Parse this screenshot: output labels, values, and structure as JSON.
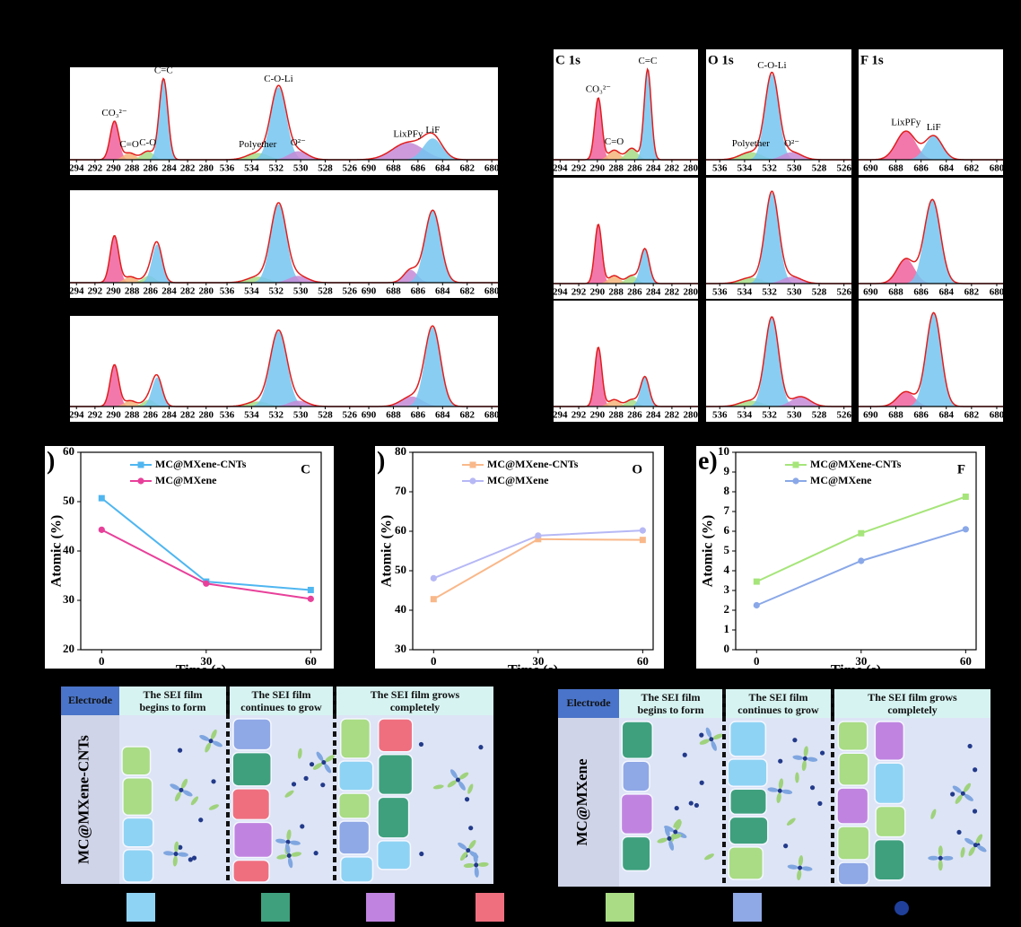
{
  "chart_data": [
    {
      "type": "xps",
      "xlim": [
        294.7,
        279.2
      ],
      "xticks": [
        294,
        292,
        290,
        288,
        286,
        284,
        282,
        280
      ],
      "series": [
        {
          "name": "CO₃²⁻",
          "color": "#f0609c",
          "center": 289.9,
          "height": 0.45,
          "width": 1.1
        },
        {
          "name": "C=O",
          "color": "#f5b47a",
          "center": 288.3,
          "height": 0.08,
          "width": 1.5
        },
        {
          "name": "C-O",
          "color": "#a6dc86",
          "center": 286.3,
          "height": 0.1,
          "width": 1.5
        },
        {
          "name": "C=C",
          "color": "#74c4f0",
          "center": 284.6,
          "height": 0.95,
          "width": 1.1
        }
      ]
    },
    {
      "type": "xps",
      "xlim": [
        537.1,
        525.4
      ],
      "xticks": [
        536,
        534,
        532,
        530,
        528,
        526
      ],
      "series": [
        {
          "name": "Polyether",
          "color": "#a6dc86",
          "center": 533.5,
          "height": 0.08,
          "width": 2
        },
        {
          "name": "C-O-Li",
          "color": "#74c4f0",
          "center": 531.8,
          "height": 0.85,
          "width": 1.5
        },
        {
          "name": "O²⁻",
          "color": "#c48ad6",
          "center": 530.2,
          "height": 0.1,
          "width": 1.8
        }
      ]
    },
    {
      "type": "xps",
      "xlim": [
        690.95,
        679.5
      ],
      "xticks": [
        690,
        688,
        686,
        684,
        682,
        680
      ],
      "series": [
        {
          "name": "LixPFy",
          "color": "#c48ad6",
          "center": 686.8,
          "height": 0.2,
          "width": 3
        },
        {
          "name": "LiF",
          "color": "#74c4f0",
          "center": 684.8,
          "height": 0.25,
          "width": 1.8
        }
      ]
    },
    {
      "type": "xps",
      "xlim": [
        294.7,
        279.2
      ],
      "xticks": [
        294,
        292,
        290,
        288,
        286,
        284,
        282,
        280
      ],
      "series": [
        {
          "color": "#f0609c",
          "center": 289.9,
          "height": 0.55,
          "width": 1.1
        },
        {
          "color": "#f5b47a",
          "center": 288.2,
          "height": 0.07,
          "width": 1.5
        },
        {
          "color": "#a6dc86",
          "center": 286.2,
          "height": 0.08,
          "width": 1.5
        },
        {
          "color": "#74c4f0",
          "center": 285.3,
          "height": 0.45,
          "width": 1.3
        }
      ]
    },
    {
      "type": "xps",
      "xlim": [
        537.1,
        525.4
      ],
      "xticks": [
        536,
        534,
        532,
        530,
        528,
        526
      ],
      "series": [
        {
          "color": "#a6dc86",
          "center": 533.5,
          "height": 0.07,
          "width": 2
        },
        {
          "color": "#74c4f0",
          "center": 531.8,
          "height": 0.92,
          "width": 1.5
        },
        {
          "color": "#c48ad6",
          "center": 530.2,
          "height": 0.08,
          "width": 1.8
        }
      ]
    },
    {
      "type": "xps",
      "xlim": [
        690.95,
        679.5
      ],
      "xticks": [
        690,
        688,
        686,
        684,
        682,
        680
      ],
      "series": [
        {
          "color": "#c48ad6",
          "center": 686.6,
          "height": 0.15,
          "width": 1.3
        },
        {
          "color": "#74c4f0",
          "center": 684.8,
          "height": 0.85,
          "width": 1.5
        }
      ]
    },
    {
      "type": "xps",
      "xlim": [
        294.7,
        279.2
      ],
      "xticks": [
        294,
        292,
        290,
        288,
        286,
        284,
        282,
        280
      ],
      "series": [
        {
          "color": "#f0609c",
          "center": 289.9,
          "height": 0.5,
          "width": 1.1
        },
        {
          "color": "#f5b47a",
          "center": 288.2,
          "height": 0.07,
          "width": 1.5
        },
        {
          "color": "#a6dc86",
          "center": 286.2,
          "height": 0.08,
          "width": 1.5
        },
        {
          "color": "#74c4f0",
          "center": 285.3,
          "height": 0.35,
          "width": 1.3
        }
      ]
    },
    {
      "type": "xps",
      "xlim": [
        537.1,
        525.4
      ],
      "xticks": [
        536,
        534,
        532,
        530,
        528,
        526
      ],
      "series": [
        {
          "color": "#a6dc86",
          "center": 533.5,
          "height": 0.06,
          "width": 2
        },
        {
          "color": "#74c4f0",
          "center": 531.8,
          "height": 0.9,
          "width": 1.6
        },
        {
          "color": "#c48ad6",
          "center": 530.2,
          "height": 0.07,
          "width": 1.8
        }
      ]
    },
    {
      "type": "xps",
      "xlim": [
        690.95,
        679.5
      ],
      "xticks": [
        690,
        688,
        686,
        684,
        682,
        680
      ],
      "series": [
        {
          "color": "#c48ad6",
          "center": 686.5,
          "height": 0.12,
          "width": 2
        },
        {
          "color": "#74c4f0",
          "center": 684.8,
          "height": 0.95,
          "width": 1.5
        }
      ]
    },
    {
      "type": "xps",
      "title": "C 1s",
      "xlim": [
        294.7,
        279.2
      ],
      "xticks": [
        294,
        292,
        290,
        288,
        286,
        284,
        282,
        280
      ],
      "series": [
        {
          "name": "CO₃²⁻",
          "color": "#f0609c",
          "center": 289.9,
          "height": 0.65,
          "width": 0.9
        },
        {
          "name": "C=O",
          "color": "#f5b47a",
          "center": 288.2,
          "height": 0.1,
          "width": 1.4
        },
        {
          "color": "#a6dc86",
          "center": 286.3,
          "height": 0.12,
          "width": 1.4
        },
        {
          "name": "C=C",
          "color": "#74c4f0",
          "center": 284.6,
          "height": 0.95,
          "width": 0.9
        }
      ]
    },
    {
      "type": "xps",
      "title": "O 1s",
      "xlim": [
        537.1,
        525.4
      ],
      "xticks": [
        536,
        534,
        532,
        530,
        528,
        526
      ],
      "series": [
        {
          "name": "Polyether",
          "color": "#a6dc86",
          "center": 533.5,
          "height": 0.08,
          "width": 2
        },
        {
          "name": "C-O-Li",
          "color": "#74c4f0",
          "center": 531.8,
          "height": 0.9,
          "width": 1.3
        },
        {
          "name": "O²⁻",
          "color": "#c48ad6",
          "center": 530.2,
          "height": 0.08,
          "width": 1.8
        }
      ]
    },
    {
      "type": "xps",
      "title": "F 1s",
      "xlim": [
        690.95,
        679.5
      ],
      "xticks": [
        690,
        688,
        686,
        684,
        682,
        680
      ],
      "series": [
        {
          "name": "LixPFy",
          "color": "#f0609c",
          "center": 687.2,
          "height": 0.3,
          "width": 1.8
        },
        {
          "name": "LiF",
          "color": "#74c4f0",
          "center": 685,
          "height": 0.25,
          "width": 1.6
        }
      ]
    },
    {
      "type": "xps",
      "xlim": [
        294.7,
        279.2
      ],
      "xticks": [
        294,
        292,
        290,
        288,
        286,
        284,
        282,
        280
      ],
      "series": [
        {
          "color": "#f0609c",
          "center": 289.9,
          "height": 0.6,
          "width": 0.9
        },
        {
          "color": "#f5b47a",
          "center": 288.2,
          "height": 0.08,
          "width": 1.4
        },
        {
          "color": "#a6dc86",
          "center": 286.3,
          "height": 0.08,
          "width": 1.4
        },
        {
          "color": "#74c4f0",
          "center": 284.9,
          "height": 0.35,
          "width": 1.1
        }
      ]
    },
    {
      "type": "xps",
      "xlim": [
        537.1,
        525.4
      ],
      "xticks": [
        536,
        534,
        532,
        530,
        528,
        526
      ],
      "series": [
        {
          "color": "#a6dc86",
          "center": 533.5,
          "height": 0.06,
          "width": 2
        },
        {
          "color": "#74c4f0",
          "center": 531.8,
          "height": 0.92,
          "width": 1.3
        },
        {
          "color": "#c48ad6",
          "center": 530.2,
          "height": 0.07,
          "width": 1.8
        }
      ]
    },
    {
      "type": "xps",
      "xlim": [
        690.95,
        679.5
      ],
      "xticks": [
        690,
        688,
        686,
        684,
        682,
        680
      ],
      "series": [
        {
          "color": "#f0609c",
          "center": 687.2,
          "height": 0.25,
          "width": 1.6
        },
        {
          "color": "#74c4f0",
          "center": 685.1,
          "height": 0.85,
          "width": 1.5
        }
      ]
    },
    {
      "type": "xps",
      "xlim": [
        294.7,
        279.2
      ],
      "xticks": [
        294,
        292,
        290,
        288,
        286,
        284,
        282,
        280
      ],
      "series": [
        {
          "color": "#f0609c",
          "center": 289.9,
          "height": 0.6,
          "width": 0.9
        },
        {
          "color": "#f5b47a",
          "center": 288.2,
          "height": 0.07,
          "width": 1.4
        },
        {
          "color": "#a6dc86",
          "center": 286.3,
          "height": 0.07,
          "width": 1.4
        },
        {
          "color": "#74c4f0",
          "center": 284.9,
          "height": 0.3,
          "width": 1.1
        }
      ]
    },
    {
      "type": "xps",
      "xlim": [
        537.1,
        525.4
      ],
      "xticks": [
        536,
        534,
        532,
        530,
        528,
        526
      ],
      "series": [
        {
          "color": "#a6dc86",
          "center": 533.5,
          "height": 0.06,
          "width": 2
        },
        {
          "color": "#74c4f0",
          "center": 531.8,
          "height": 0.9,
          "width": 1.3
        },
        {
          "color": "#c48ad6",
          "center": 529.5,
          "height": 0.1,
          "width": 1.8
        }
      ]
    },
    {
      "type": "xps",
      "xlim": [
        690.95,
        679.5
      ],
      "xticks": [
        690,
        688,
        686,
        684,
        682,
        680
      ],
      "series": [
        {
          "color": "#f0609c",
          "center": 687.2,
          "height": 0.15,
          "width": 1.6
        },
        {
          "color": "#74c4f0",
          "center": 685,
          "height": 0.95,
          "width": 1.4
        }
      ]
    },
    {
      "type": "line",
      "panel_label": ")",
      "title": "C",
      "y_label": "Atomic (%)",
      "x_label": "Time (s)",
      "x": [
        0,
        30,
        60
      ],
      "xlim": [
        -6,
        63
      ],
      "xticks": [
        0,
        30,
        60
      ],
      "ylim": [
        20,
        60
      ],
      "yticks": [
        20,
        30,
        40,
        50,
        60
      ],
      "series": [
        {
          "name": "MC@MXene-CNTs",
          "color": "#4fb6f0",
          "marker": "square",
          "values": [
            50.7,
            33.8,
            32.1
          ]
        },
        {
          "name": "MC@MXene",
          "color": "#e8409a",
          "marker": "circle",
          "values": [
            44.3,
            33.4,
            30.3
          ]
        }
      ]
    },
    {
      "type": "line",
      "panel_label": ")",
      "title": "O",
      "y_label": "Atomic (%)",
      "x_label": "Time (s)",
      "x": [
        0,
        30,
        60
      ],
      "xlim": [
        -6,
        63
      ],
      "xticks": [
        0,
        30,
        60
      ],
      "ylim": [
        30,
        80
      ],
      "yticks": [
        30,
        40,
        50,
        60,
        70,
        80
      ],
      "series": [
        {
          "name": "MC@MXene-CNTs",
          "color": "#f9b88a",
          "marker": "square",
          "values": [
            42.8,
            58.0,
            57.8
          ]
        },
        {
          "name": "MC@MXene",
          "color": "#b6b8f5",
          "marker": "circle",
          "values": [
            48.1,
            58.9,
            60.2
          ]
        }
      ]
    },
    {
      "type": "line",
      "panel_label": "e)",
      "title": "F",
      "y_label": "Atomic (%)",
      "x_label": "Time (s)",
      "x": [
        0,
        30,
        60
      ],
      "xlim": [
        -6,
        63
      ],
      "xticks": [
        0,
        30,
        60
      ],
      "ylim": [
        0,
        10
      ],
      "yticks": [
        0,
        1,
        2,
        3,
        4,
        5,
        6,
        7,
        8,
        9,
        10
      ],
      "series": [
        {
          "name": "MC@MXene-CNTs",
          "color": "#a6e57a",
          "marker": "square",
          "values": [
            3.45,
            5.9,
            7.75
          ]
        },
        {
          "name": "MC@MXene",
          "color": "#8aa8e8",
          "marker": "circle",
          "values": [
            2.25,
            4.5,
            6.1
          ]
        }
      ]
    }
  ],
  "schematics": [
    {
      "electrode": "Electrode",
      "label": "MC@MXene-CNTs",
      "stages": [
        [
          "The SEI film",
          "begins to form"
        ],
        [
          "The SEI film",
          "continues to grow"
        ],
        [
          "The SEI film grows",
          "completely"
        ]
      ]
    },
    {
      "electrode": "Electrode",
      "label": "MC@MXene",
      "stages": [
        [
          "The SEI film",
          "begins to form"
        ],
        [
          "The SEI film",
          "continues to grow"
        ],
        [
          "The SEI film grows",
          "completely"
        ]
      ]
    }
  ]
}
